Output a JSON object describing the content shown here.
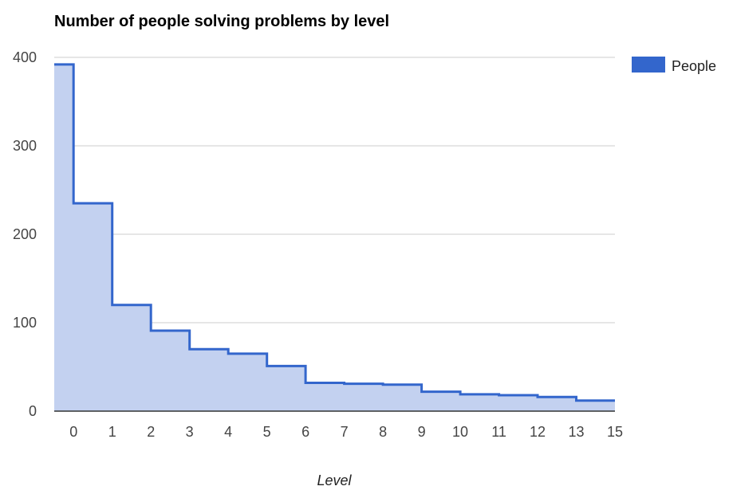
{
  "chart_data": {
    "type": "area",
    "title": "Number of people solving problems by level",
    "xlabel": "Level",
    "ylabel": "",
    "categories": [
      "0",
      "1",
      "2",
      "3",
      "4",
      "5",
      "6",
      "7",
      "8",
      "9",
      "10",
      "11",
      "12",
      "13",
      "15"
    ],
    "series": [
      {
        "name": "People",
        "values": [
          392,
          235,
          120,
          91,
          70,
          65,
          51,
          32,
          31,
          30,
          22,
          19,
          18,
          16,
          12
        ]
      }
    ],
    "ylim": [
      0,
      400
    ],
    "yticks": [
      0,
      100,
      200,
      300,
      400
    ],
    "grid": true,
    "step": true,
    "legend_position": "right",
    "colors": {
      "line": "#3366cc",
      "fill": "#c3d1f0",
      "grid": "#cccccc",
      "baseline": "#333333"
    }
  }
}
